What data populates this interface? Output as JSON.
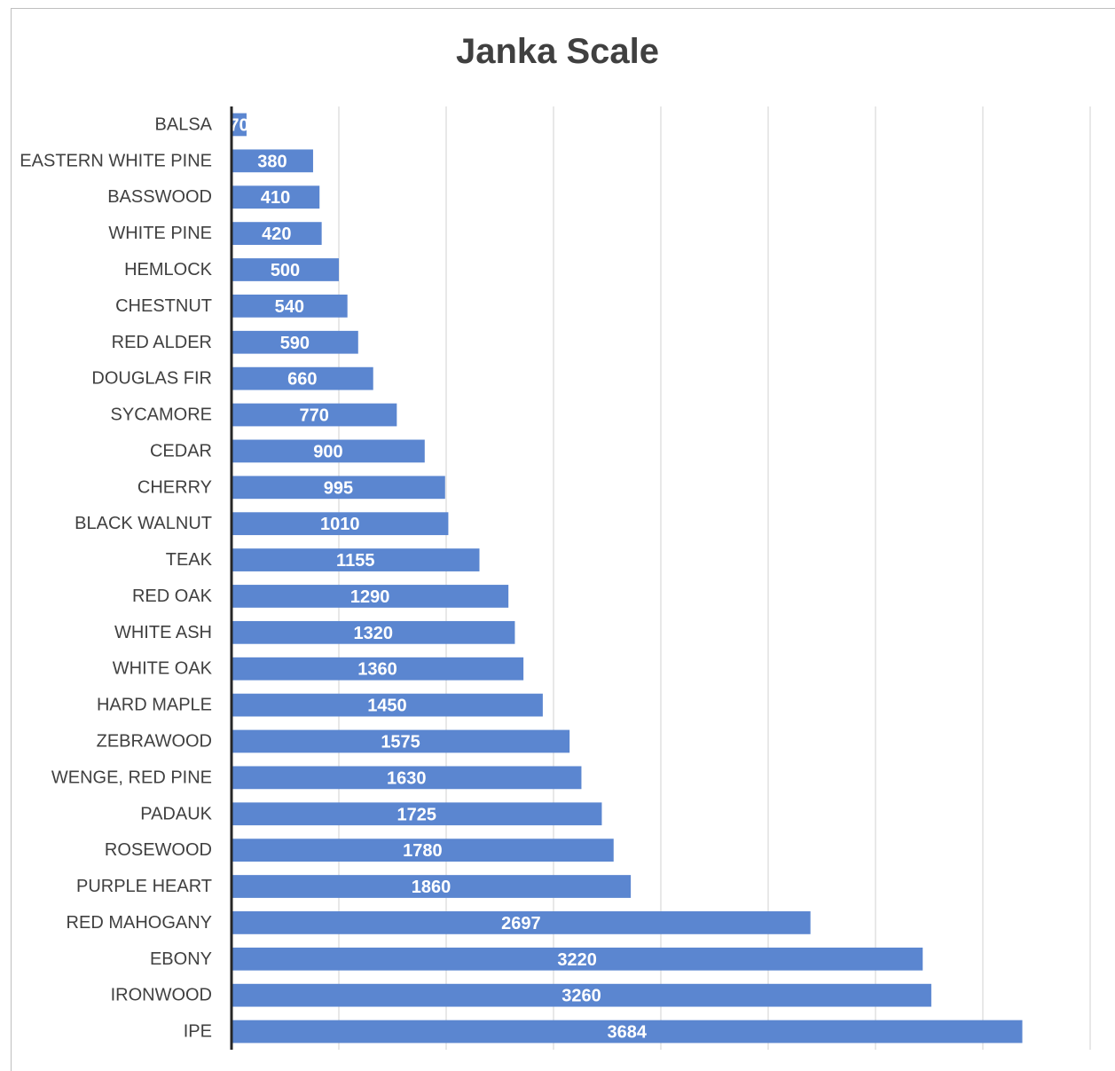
{
  "chart_data": {
    "type": "bar",
    "orientation": "horizontal",
    "title": "Janka Scale",
    "xlabel": "",
    "ylabel": "",
    "xlim": [
      0,
      4000
    ],
    "grid": true,
    "legend": "none",
    "bar_color": "#5b86d0",
    "categories": [
      "BALSA",
      "EASTERN WHITE PINE",
      "BASSWOOD",
      "WHITE PINE",
      "HEMLOCK",
      "CHESTNUT",
      "RED ALDER",
      "DOUGLAS FIR",
      "SYCAMORE",
      "CEDAR",
      "CHERRY",
      "BLACK WALNUT",
      "TEAK",
      "RED OAK",
      "WHITE ASH",
      "WHITE OAK",
      "HARD MAPLE",
      "ZEBRAWOOD",
      "WENGE, RED PINE",
      "PADAUK",
      "ROSEWOOD",
      "PURPLE HEART",
      "RED MAHOGANY",
      "EBONY",
      "IRONWOOD",
      "IPE"
    ],
    "values": [
      70,
      380,
      410,
      420,
      500,
      540,
      590,
      660,
      770,
      900,
      995,
      1010,
      1155,
      1290,
      1320,
      1360,
      1450,
      1575,
      1630,
      1725,
      1780,
      1860,
      2697,
      3220,
      3260,
      3684
    ],
    "value_labels": [
      "70",
      "380",
      "410",
      "420",
      "500",
      "540",
      "590",
      "660",
      "770",
      "900",
      "995",
      "1010",
      "1155",
      "1290",
      "1320",
      "1360",
      "1450",
      "1575",
      "1630",
      "1725",
      "1780",
      "1860",
      "2697",
      "3220",
      "3260",
      "3684"
    ]
  }
}
